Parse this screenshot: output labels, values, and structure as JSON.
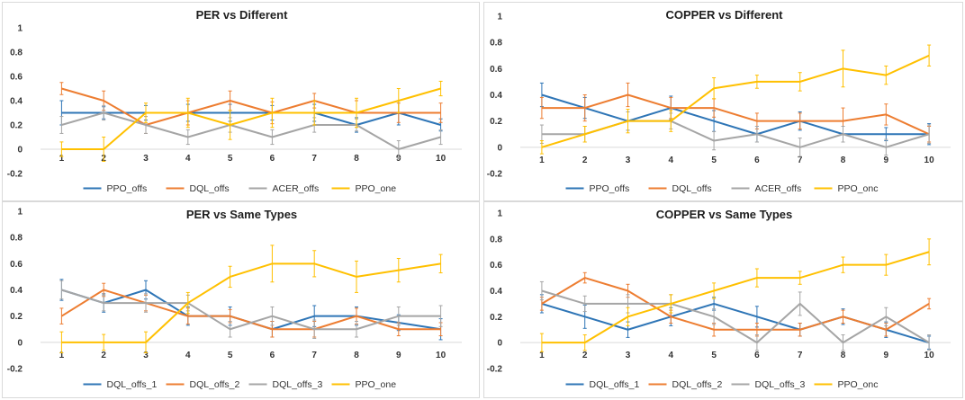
{
  "chart_data": [
    {
      "type": "line",
      "title": "PER vs Different",
      "categories": [
        "1",
        "2",
        "3",
        "4",
        "5",
        "6",
        "7",
        "8",
        "9",
        "10"
      ],
      "ylim": [
        -0.2,
        1
      ],
      "yticks": [
        "-0.2",
        "0",
        "0.2",
        "0.4",
        "0.6",
        "0.8",
        "1"
      ],
      "xticks_show_tick_label_row": true,
      "series": [
        {
          "name": "PPO_offs",
          "color": "#2E75B6",
          "values": [
            0.3,
            0.3,
            0.3,
            0.3,
            0.3,
            0.3,
            0.3,
            0.2,
            0.3,
            0.2
          ],
          "errors": [
            0.1,
            0.05,
            0.06,
            0.07,
            0.07,
            0.06,
            0.07,
            0.06,
            0.1,
            0.05
          ]
        },
        {
          "name": "DQL_offs",
          "color": "#ED7D31",
          "values": [
            0.5,
            0.4,
            0.2,
            0.3,
            0.4,
            0.3,
            0.4,
            0.3,
            0.3,
            0.3
          ],
          "errors": [
            0.05,
            0.08,
            0.07,
            0.1,
            0.08,
            0.09,
            0.06,
            0.1,
            0.08,
            0.08
          ]
        },
        {
          "name": "ACER_offs",
          "color": "#A5A5A5",
          "values": [
            0.2,
            0.3,
            0.2,
            0.1,
            0.2,
            0.1,
            0.2,
            0.2,
            0.0,
            0.1
          ],
          "errors": [
            0.07,
            0.06,
            0.07,
            0.06,
            0.06,
            0.06,
            0.06,
            0.05,
            0.07,
            0.06
          ]
        },
        {
          "name": "PPO_one",
          "color": "#FFC000",
          "values": [
            0.0,
            0.0,
            0.3,
            0.3,
            0.2,
            0.3,
            0.3,
            0.3,
            0.4,
            0.5
          ],
          "errors": [
            0.06,
            0.1,
            0.08,
            0.12,
            0.12,
            0.12,
            0.1,
            0.12,
            0.1,
            0.06
          ]
        }
      ]
    },
    {
      "type": "line",
      "title": "COPPER vs Different",
      "categories": [
        "1",
        "2",
        "3",
        "4",
        "5",
        "6",
        "7",
        "8",
        "9",
        "10"
      ],
      "ylim": [
        -0.2,
        1
      ],
      "yticks": [
        "-0.2",
        "0",
        "0.2",
        "0.4",
        "0.6",
        "0.8",
        "1"
      ],
      "series": [
        {
          "name": "PPO_offs",
          "color": "#2E75B6",
          "values": [
            0.4,
            0.3,
            0.2,
            0.3,
            0.2,
            0.1,
            0.2,
            0.1,
            0.1,
            0.1
          ],
          "errors": [
            0.09,
            0.08,
            0.07,
            0.09,
            0.08,
            0.06,
            0.07,
            0.06,
            0.05,
            0.08
          ]
        },
        {
          "name": "DQL_offs",
          "color": "#ED7D31",
          "values": [
            0.3,
            0.3,
            0.4,
            0.3,
            0.3,
            0.2,
            0.2,
            0.2,
            0.25,
            0.1
          ],
          "errors": [
            0.08,
            0.1,
            0.09,
            0.08,
            0.07,
            0.06,
            0.06,
            0.1,
            0.08,
            0.06
          ]
        },
        {
          "name": "ACER_offs",
          "color": "#A5A5A5",
          "values": [
            0.1,
            0.1,
            0.2,
            0.2,
            0.05,
            0.1,
            0.0,
            0.1,
            0.0,
            0.1
          ],
          "errors": [
            0.07,
            0.06,
            0.07,
            0.06,
            0.07,
            0.06,
            0.07,
            0.06,
            0.06,
            0.07
          ]
        },
        {
          "name": "PPO_onc",
          "color": "#FFC000",
          "values": [
            0.0,
            0.1,
            0.2,
            0.2,
            0.45,
            0.5,
            0.5,
            0.6,
            0.55,
            0.7
          ],
          "errors": [
            0.05,
            0.06,
            0.09,
            0.08,
            0.08,
            0.05,
            0.07,
            0.14,
            0.07,
            0.08
          ]
        }
      ]
    },
    {
      "type": "line",
      "title": "PER vs Same Types",
      "categories": [
        "1",
        "2",
        "3",
        "4",
        "5",
        "6",
        "7",
        "8",
        "9",
        "10"
      ],
      "ylim": [
        -0.2,
        1
      ],
      "yticks": [
        "-0.2",
        "0",
        "0.2",
        "0.4",
        "0.6",
        "0.8",
        "1"
      ],
      "series": [
        {
          "name": "DQL_offs_1",
          "color": "#2E75B6",
          "values": [
            0.4,
            0.3,
            0.4,
            0.2,
            0.2,
            0.1,
            0.2,
            0.2,
            0.15,
            0.1
          ],
          "errors": [
            0.08,
            0.07,
            0.07,
            0.07,
            0.07,
            0.06,
            0.08,
            0.07,
            0.06,
            0.08
          ]
        },
        {
          "name": "DQL_offs_2",
          "color": "#ED7D31",
          "values": [
            0.2,
            0.4,
            0.3,
            0.2,
            0.2,
            0.1,
            0.1,
            0.2,
            0.1,
            0.1
          ],
          "errors": [
            0.06,
            0.05,
            0.06,
            0.06,
            0.05,
            0.06,
            0.06,
            0.06,
            0.05,
            0.05
          ]
        },
        {
          "name": "DQL_offs_3",
          "color": "#A5A5A5",
          "values": [
            0.4,
            0.3,
            0.3,
            0.3,
            0.1,
            0.2,
            0.1,
            0.1,
            0.2,
            0.2
          ],
          "errors": [
            0.07,
            0.06,
            0.07,
            0.06,
            0.06,
            0.07,
            0.07,
            0.06,
            0.07,
            0.08
          ]
        },
        {
          "name": "PPO_one",
          "color": "#FFC000",
          "values": [
            0.0,
            0.0,
            0.0,
            0.3,
            0.5,
            0.6,
            0.6,
            0.5,
            0.55,
            0.6
          ],
          "errors": [
            0.08,
            0.06,
            0.08,
            0.08,
            0.08,
            0.14,
            0.1,
            0.12,
            0.09,
            0.07
          ]
        }
      ]
    },
    {
      "type": "line",
      "title": "COPPER vs Same Types",
      "categories": [
        "1",
        "2",
        "3",
        "4",
        "5",
        "6",
        "7",
        "8",
        "9",
        "10"
      ],
      "ylim": [
        -0.2,
        1
      ],
      "yticks": [
        "-0.2",
        "0",
        "0.2",
        "0.4",
        "0.6",
        "0.8",
        "1"
      ],
      "series": [
        {
          "name": "DQL_offs_1",
          "color": "#2E75B6",
          "values": [
            0.3,
            0.2,
            0.1,
            0.2,
            0.3,
            0.2,
            0.1,
            0.2,
            0.1,
            0.0
          ],
          "errors": [
            0.07,
            0.09,
            0.06,
            0.07,
            0.05,
            0.08,
            0.05,
            0.06,
            0.06,
            0.05
          ]
        },
        {
          "name": "DQL_offs_2",
          "color": "#ED7D31",
          "values": [
            0.3,
            0.5,
            0.4,
            0.2,
            0.1,
            0.1,
            0.1,
            0.2,
            0.1,
            0.3
          ],
          "errors": [
            0.05,
            0.04,
            0.05,
            0.05,
            0.05,
            0.05,
            0.05,
            0.05,
            0.05,
            0.04
          ]
        },
        {
          "name": "DQL_offs_3",
          "color": "#A5A5A5",
          "values": [
            0.4,
            0.3,
            0.3,
            0.3,
            0.2,
            0.0,
            0.3,
            0.0,
            0.2,
            0.0
          ],
          "errors": [
            0.07,
            0.06,
            0.07,
            0.07,
            0.06,
            0.06,
            0.09,
            0.06,
            0.07,
            0.06
          ]
        },
        {
          "name": "PPO_onc",
          "color": "#FFC000",
          "values": [
            0.0,
            0.0,
            0.2,
            0.3,
            0.4,
            0.5,
            0.5,
            0.6,
            0.6,
            0.7
          ],
          "errors": [
            0.07,
            0.06,
            0.07,
            0.07,
            0.06,
            0.07,
            0.05,
            0.06,
            0.08,
            0.1
          ]
        }
      ]
    }
  ]
}
